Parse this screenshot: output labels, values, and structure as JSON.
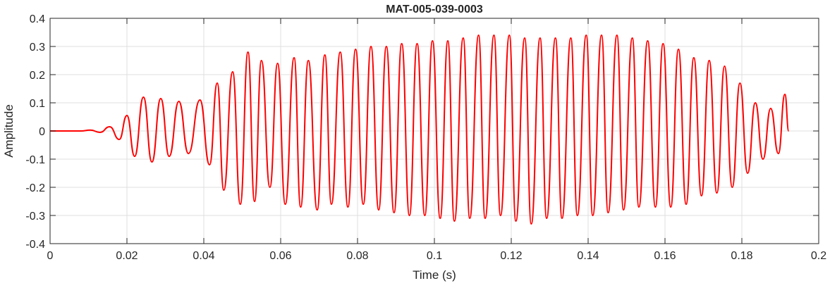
{
  "chart_data": {
    "type": "line",
    "title": "MAT-005-039-0003",
    "xlabel": "Time (s)",
    "ylabel": "Amplitude",
    "xlim": [
      0,
      0.2
    ],
    "ylim": [
      -0.4,
      0.4
    ],
    "x_ticks": [
      0,
      0.02,
      0.04,
      0.06,
      0.08,
      0.1,
      0.12,
      0.14,
      0.16,
      0.18,
      0.2
    ],
    "x_tick_labels": [
      "0",
      "0.02",
      "0.04",
      "0.06",
      "0.08",
      "0.1",
      "0.12",
      "0.14",
      "0.16",
      "0.18",
      "0.2"
    ],
    "y_ticks": [
      -0.4,
      -0.3,
      -0.2,
      -0.1,
      0,
      0.1,
      0.2,
      0.3,
      0.4
    ],
    "y_tick_labels": [
      "-0.4",
      "-0.3",
      "-0.2",
      "-0.1",
      "0",
      "0.1",
      "0.2",
      "0.3",
      "0.4"
    ],
    "grid": true,
    "series": [
      {
        "color": "#ff0000",
        "x": [
          0,
          0.008,
          0.0105,
          0.013,
          0.0155,
          0.018,
          0.02,
          0.022,
          0.0243,
          0.0265,
          0.0288,
          0.031,
          0.0335,
          0.036,
          0.039,
          0.0415,
          0.0435,
          0.0452,
          0.0475,
          0.0495,
          0.0515,
          0.0532,
          0.055,
          0.0572,
          0.0592,
          0.0612,
          0.0635,
          0.0652,
          0.0672,
          0.0695,
          0.0715,
          0.0732,
          0.0755,
          0.0775,
          0.0795,
          0.0815,
          0.0835,
          0.0855,
          0.0875,
          0.0895,
          0.0915,
          0.0935,
          0.0955,
          0.0975,
          0.0995,
          0.1015,
          0.1035,
          0.1052,
          0.1075,
          0.1092,
          0.1115,
          0.1132,
          0.1155,
          0.1172,
          0.1195,
          0.1212,
          0.1235,
          0.1252,
          0.1275,
          0.1292,
          0.1315,
          0.1332,
          0.1355,
          0.1372,
          0.1395,
          0.1412,
          0.1435,
          0.1452,
          0.1475,
          0.1492,
          0.1515,
          0.1532,
          0.1555,
          0.1575,
          0.1595,
          0.1615,
          0.1635,
          0.1655,
          0.1675,
          0.1695,
          0.1715,
          0.1735,
          0.1755,
          0.1775,
          0.1795,
          0.1815,
          0.1835,
          0.1855,
          0.1875,
          0.1895,
          0.1912,
          0.1922
        ],
        "y": [
          0,
          0,
          0.003,
          -0.005,
          0.015,
          -0.03,
          0.055,
          -0.09,
          0.12,
          -0.11,
          0.115,
          -0.09,
          0.105,
          -0.08,
          0.11,
          -0.12,
          0.17,
          -0.21,
          0.21,
          -0.26,
          0.28,
          -0.25,
          0.25,
          -0.2,
          0.24,
          -0.26,
          0.26,
          -0.27,
          0.25,
          -0.28,
          0.27,
          -0.26,
          0.28,
          -0.27,
          0.29,
          -0.26,
          0.3,
          -0.28,
          0.3,
          -0.29,
          0.31,
          -0.3,
          0.31,
          -0.3,
          0.32,
          -0.31,
          0.32,
          -0.32,
          0.33,
          -0.31,
          0.34,
          -0.31,
          0.34,
          -0.3,
          0.34,
          -0.32,
          0.33,
          -0.33,
          0.33,
          -0.31,
          0.33,
          -0.31,
          0.33,
          -0.3,
          0.34,
          -0.3,
          0.34,
          -0.29,
          0.34,
          -0.28,
          0.33,
          -0.27,
          0.32,
          -0.27,
          0.31,
          -0.27,
          0.29,
          -0.26,
          0.26,
          -0.23,
          0.25,
          -0.22,
          0.23,
          -0.2,
          0.17,
          -0.15,
          0.1,
          -0.1,
          0.08,
          -0.08,
          0.13,
          0
        ]
      }
    ]
  }
}
